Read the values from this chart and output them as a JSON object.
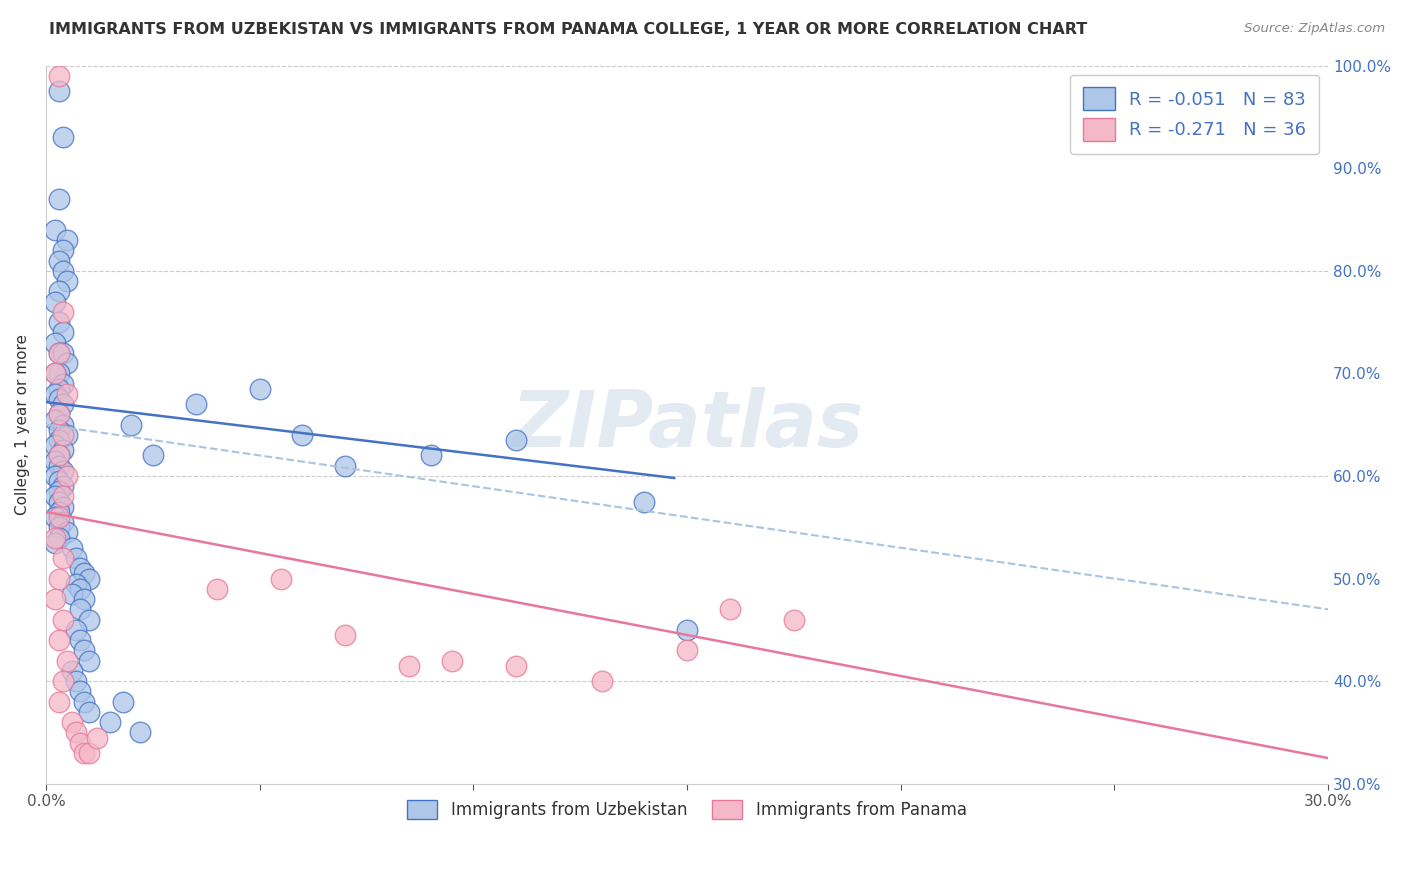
{
  "title": "IMMIGRANTS FROM UZBEKISTAN VS IMMIGRANTS FROM PANAMA COLLEGE, 1 YEAR OR MORE CORRELATION CHART",
  "source": "Source: ZipAtlas.com",
  "ylabel": "College, 1 year or more",
  "legend_label_blue": "Immigrants from Uzbekistan",
  "legend_label_pink": "Immigrants from Panama",
  "legend_R_blue": "-0.051",
  "legend_N_blue": "83",
  "legend_R_pink": "-0.271",
  "legend_N_pink": "36",
  "xlim": [
    0.0,
    0.3
  ],
  "ylim": [
    0.3,
    1.0
  ],
  "color_blue": "#aec6e8",
  "color_pink": "#f4b8c8",
  "line_color_blue": "#4472c4",
  "line_color_pink": "#e8789a",
  "line_color_dashed": "#aac4e0",
  "watermark_text": "ZIPatlas",
  "blue_trend": [
    0.672,
    0.598
  ],
  "blue_trend_x": [
    0.0,
    0.147
  ],
  "dashed_trend": [
    0.65,
    0.47
  ],
  "dashed_trend_x": [
    0.0,
    0.3
  ],
  "pink_trend": [
    0.565,
    0.325
  ],
  "pink_trend_x": [
    0.0,
    0.3
  ],
  "blue_x": [
    0.003,
    0.004,
    0.003,
    0.002,
    0.005,
    0.004,
    0.003,
    0.004,
    0.005,
    0.003,
    0.002,
    0.003,
    0.004,
    0.002,
    0.003,
    0.004,
    0.005,
    0.003,
    0.002,
    0.004,
    0.003,
    0.002,
    0.003,
    0.004,
    0.003,
    0.002,
    0.004,
    0.003,
    0.005,
    0.003,
    0.002,
    0.004,
    0.003,
    0.002,
    0.003,
    0.004,
    0.002,
    0.003,
    0.004,
    0.003,
    0.002,
    0.003,
    0.004,
    0.003,
    0.002,
    0.004,
    0.003,
    0.005,
    0.003,
    0.002,
    0.006,
    0.007,
    0.008,
    0.009,
    0.01,
    0.007,
    0.008,
    0.006,
    0.009,
    0.008,
    0.01,
    0.007,
    0.008,
    0.009,
    0.01,
    0.006,
    0.007,
    0.008,
    0.009,
    0.01,
    0.02,
    0.025,
    0.035,
    0.05,
    0.06,
    0.07,
    0.09,
    0.11,
    0.14,
    0.15,
    0.015,
    0.018,
    0.022
  ],
  "blue_y": [
    0.975,
    0.93,
    0.87,
    0.84,
    0.83,
    0.82,
    0.81,
    0.8,
    0.79,
    0.78,
    0.77,
    0.75,
    0.74,
    0.73,
    0.72,
    0.72,
    0.71,
    0.7,
    0.7,
    0.69,
    0.685,
    0.68,
    0.675,
    0.67,
    0.66,
    0.655,
    0.65,
    0.645,
    0.64,
    0.635,
    0.63,
    0.625,
    0.62,
    0.615,
    0.61,
    0.605,
    0.6,
    0.595,
    0.59,
    0.585,
    0.58,
    0.575,
    0.57,
    0.565,
    0.56,
    0.555,
    0.55,
    0.545,
    0.54,
    0.535,
    0.53,
    0.52,
    0.51,
    0.505,
    0.5,
    0.495,
    0.49,
    0.485,
    0.48,
    0.47,
    0.46,
    0.45,
    0.44,
    0.43,
    0.42,
    0.41,
    0.4,
    0.39,
    0.38,
    0.37,
    0.65,
    0.62,
    0.67,
    0.685,
    0.64,
    0.61,
    0.62,
    0.635,
    0.575,
    0.45,
    0.36,
    0.38,
    0.35
  ],
  "pink_x": [
    0.003,
    0.004,
    0.003,
    0.002,
    0.005,
    0.003,
    0.004,
    0.003,
    0.005,
    0.004,
    0.003,
    0.002,
    0.004,
    0.003,
    0.002,
    0.004,
    0.003,
    0.005,
    0.004,
    0.003,
    0.04,
    0.055,
    0.07,
    0.085,
    0.095,
    0.11,
    0.13,
    0.15,
    0.16,
    0.175,
    0.006,
    0.007,
    0.008,
    0.009,
    0.01,
    0.012
  ],
  "pink_y": [
    0.99,
    0.76,
    0.72,
    0.7,
    0.68,
    0.66,
    0.64,
    0.62,
    0.6,
    0.58,
    0.56,
    0.54,
    0.52,
    0.5,
    0.48,
    0.46,
    0.44,
    0.42,
    0.4,
    0.38,
    0.49,
    0.5,
    0.445,
    0.415,
    0.42,
    0.415,
    0.4,
    0.43,
    0.47,
    0.46,
    0.36,
    0.35,
    0.34,
    0.33,
    0.33,
    0.345
  ]
}
